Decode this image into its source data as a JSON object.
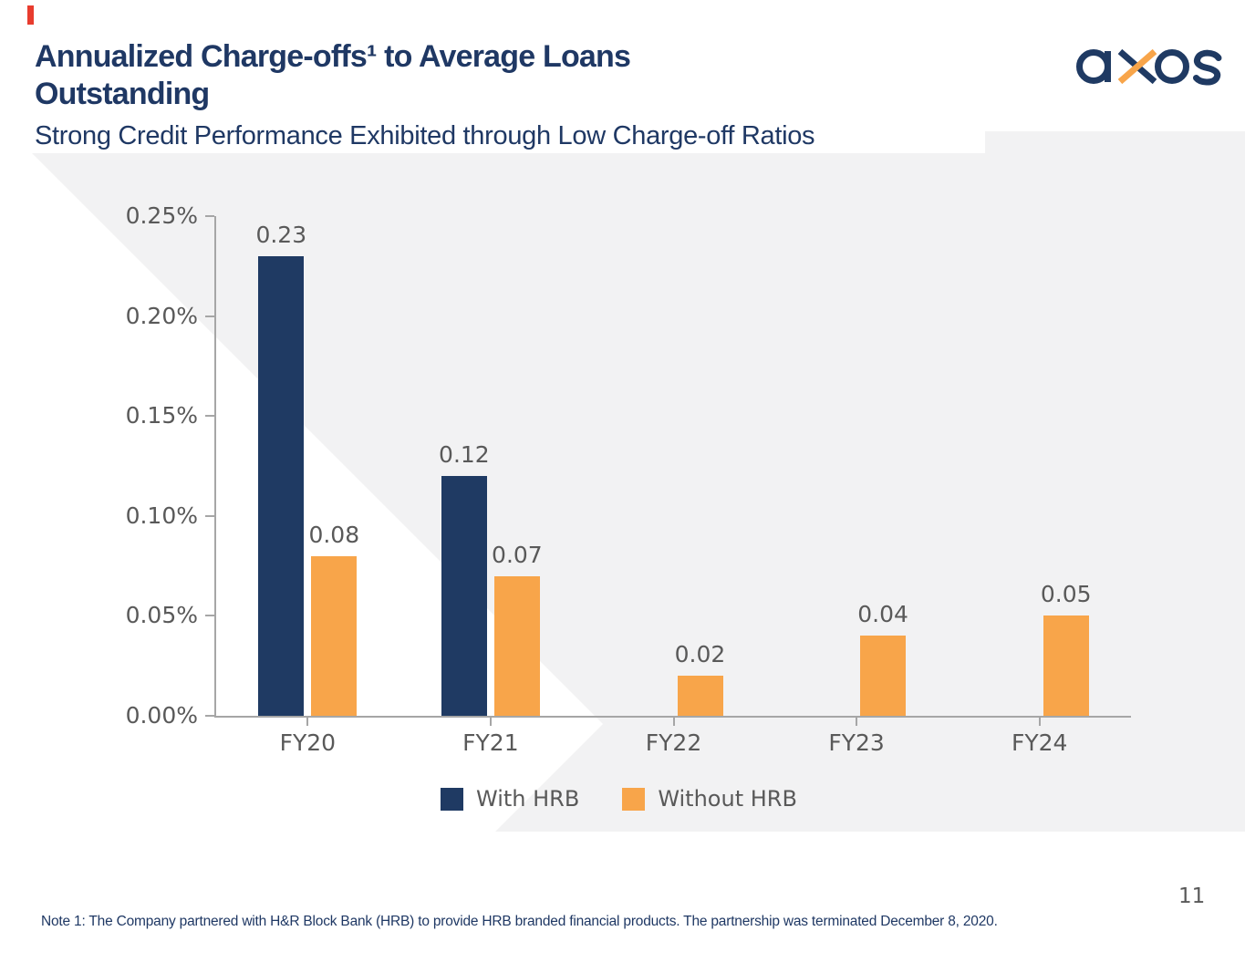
{
  "header": {
    "title_lines": [
      "Annualized Charge-offs¹ to Average Loans",
      "Outstanding"
    ],
    "title_full": "Annualized Charge-offs¹ to Average Loans Outstanding",
    "subtitle": "Strong Credit Performance Exhibited through Low Charge-off Ratios"
  },
  "logo": {
    "brand": "axos"
  },
  "colors": {
    "navy": "#1F3A63",
    "orange": "#F8A54A",
    "title_navy": "#1F3864",
    "axis_gray": "#A6A6A6",
    "label_gray": "#595959",
    "panel_gray": "#F2F2F3",
    "accent_red": "#E83C2E"
  },
  "chart_data": {
    "type": "bar",
    "title": "Annualized Charge-offs to Average Loans Outstanding (%)",
    "categories": [
      "FY20",
      "FY21",
      "FY22",
      "FY23",
      "FY24"
    ],
    "series": [
      {
        "name": "With HRB",
        "color": "#1F3A63",
        "values": [
          0.23,
          0.12,
          null,
          null,
          null
        ]
      },
      {
        "name": "Without HRB",
        "color": "#F8A54A",
        "values": [
          0.08,
          0.07,
          0.02,
          0.04,
          0.05
        ]
      }
    ],
    "ylim": [
      0,
      0.25
    ],
    "ytick_step": 0.05,
    "ytick_labels": [
      "0.00%",
      "0.05%",
      "0.10%",
      "0.15%",
      "0.20%",
      "0.25%"
    ],
    "value_label_decimals": 2,
    "grid": false,
    "legend_position": "bottom",
    "xlabel": "",
    "ylabel": ""
  },
  "footnote": "Note 1: The Company partnered with H&R Block Bank (HRB) to provide HRB branded financial products. The partnership was terminated December 8, 2020.",
  "page_number": "11"
}
